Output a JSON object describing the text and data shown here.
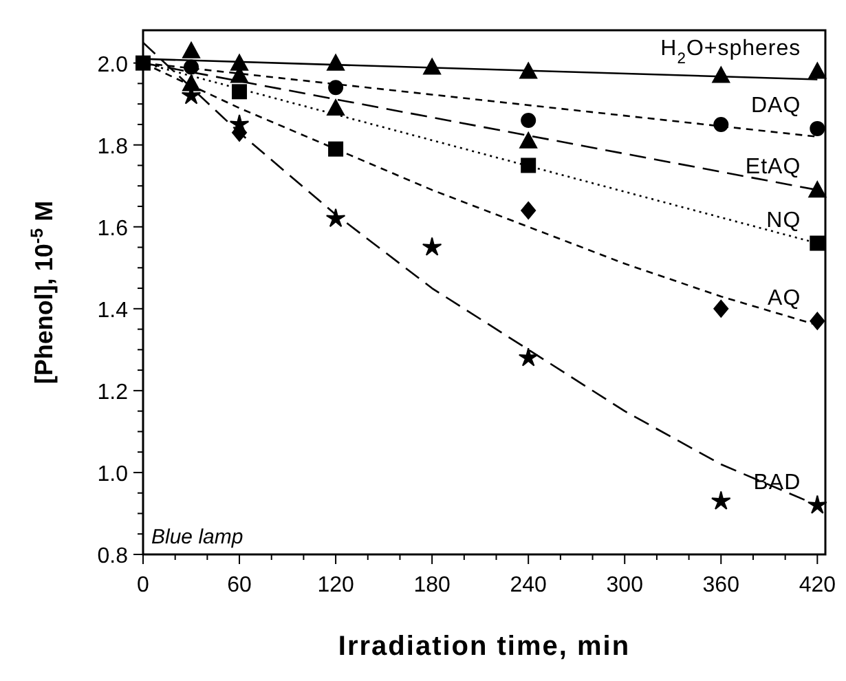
{
  "chart_data": {
    "type": "scatter",
    "xlabel": "Irradiation time, min",
    "ylabel": "[Phenol], 10$^{-5}$ M",
    "xlim": [
      0,
      425
    ],
    "ylim": [
      0.8,
      2.08
    ],
    "xticks": [
      0,
      {
        "value": 20,
        "label": null
      },
      {
        "value": 40,
        "label": null
      },
      60,
      {
        "value": 80,
        "label": null
      },
      {
        "value": 100,
        "label": null
      },
      120,
      {
        "value": 140,
        "label": null
      },
      {
        "value": 160,
        "label": null
      },
      180,
      {
        "value": 200,
        "label": null
      },
      {
        "value": 220,
        "label": null
      },
      240,
      {
        "value": 260,
        "label": null
      },
      {
        "value": 280,
        "label": null
      },
      300,
      {
        "value": 320,
        "label": null
      },
      {
        "value": 340,
        "label": null
      },
      360,
      {
        "value": 380,
        "label": null
      },
      {
        "value": 400,
        "label": null
      },
      420
    ],
    "yticks": [
      {
        "value": 0.8,
        "label": "0.8"
      },
      {
        "value": 0.85,
        "label": null
      },
      {
        "value": 0.9,
        "label": null
      },
      {
        "value": 0.95,
        "label": null
      },
      {
        "value": 1.0,
        "label": "1.0"
      },
      {
        "value": 1.05,
        "label": null
      },
      {
        "value": 1.1,
        "label": null
      },
      {
        "value": 1.15,
        "label": null
      },
      {
        "value": 1.2,
        "label": "1.2"
      },
      {
        "value": 1.25,
        "label": null
      },
      {
        "value": 1.3,
        "label": null
      },
      {
        "value": 1.35,
        "label": null
      },
      {
        "value": 1.4,
        "label": "1.4"
      },
      {
        "value": 1.45,
        "label": null
      },
      {
        "value": 1.5,
        "label": null
      },
      {
        "value": 1.55,
        "label": null
      },
      {
        "value": 1.6,
        "label": "1.6"
      },
      {
        "value": 1.65,
        "label": null
      },
      {
        "value": 1.7,
        "label": null
      },
      {
        "value": 1.75,
        "label": null
      },
      {
        "value": 1.8,
        "label": "1.8"
      },
      {
        "value": 1.85,
        "label": null
      },
      {
        "value": 1.9,
        "label": null
      },
      {
        "value": 1.95,
        "label": null
      },
      {
        "value": 2.0,
        "label": "2.0"
      }
    ],
    "grid": false,
    "legend": false,
    "annotations": [
      "Blue lamp"
    ],
    "series": [
      {
        "type": "line",
        "color": "#000000",
        "line_style": "solid",
        "x": [
          0,
          420
        ],
        "values": [
          2.01,
          1.96
        ]
      },
      {
        "type": "line",
        "color": "#000000",
        "line_style": "dashed",
        "x": [
          0,
          420
        ],
        "values": [
          2.0,
          1.82
        ]
      },
      {
        "type": "line",
        "color": "#000000",
        "line_style": "longdash",
        "x": [
          0,
          420
        ],
        "values": [
          2.0,
          1.69
        ]
      },
      {
        "type": "line",
        "color": "#000000",
        "line_style": "dotted",
        "x": [
          0,
          420
        ],
        "values": [
          2.0,
          1.56
        ]
      },
      {
        "type": "line",
        "color": "#000000",
        "line_style": "dashed",
        "x": [
          0,
          60,
          120,
          180,
          240,
          300,
          360,
          420
        ],
        "values": [
          2.0,
          1.89,
          1.79,
          1.69,
          1.6,
          1.51,
          1.43,
          1.36
        ]
      },
      {
        "type": "line",
        "color": "#000000",
        "line_style": "longdash",
        "x": [
          0,
          60,
          120,
          180,
          240,
          300,
          360,
          420
        ],
        "values": [
          2.05,
          1.83,
          1.63,
          1.45,
          1.3,
          1.15,
          1.02,
          0.92
        ]
      },
      {
        "name": "H$_{2}$O+spheres",
        "color": "#000000",
        "marker": "triangle",
        "x": [
          30,
          60,
          120,
          180,
          240,
          360,
          420
        ],
        "values": [
          2.03,
          2.0,
          2.0,
          1.99,
          1.98,
          1.97,
          1.98
        ]
      },
      {
        "name": "DAQ",
        "color": "#000000",
        "marker": "circle",
        "x": [
          30,
          120,
          240,
          360,
          420
        ],
        "values": [
          1.99,
          1.94,
          1.86,
          1.85,
          1.84
        ]
      },
      {
        "name": "EtAQ",
        "color": "#000000",
        "marker": "triangle",
        "x": [
          30,
          60,
          120,
          240,
          420
        ],
        "values": [
          1.95,
          1.97,
          1.89,
          1.81,
          1.69
        ]
      },
      {
        "name": "NQ",
        "color": "#000000",
        "marker": "square",
        "x": [
          0,
          60,
          120,
          240,
          420
        ],
        "values": [
          2.0,
          1.93,
          1.79,
          1.75,
          1.56
        ]
      },
      {
        "name": "AQ",
        "color": "#000000",
        "marker": "diamond",
        "x": [
          60,
          240,
          360,
          420
        ],
        "values": [
          1.83,
          1.64,
          1.4,
          1.37
        ]
      },
      {
        "name": "BAD",
        "color": "#000000",
        "marker": "star",
        "x": [
          30,
          60,
          120,
          180,
          240,
          360,
          420
        ],
        "values": [
          1.92,
          1.85,
          1.62,
          1.55,
          1.28,
          0.93,
          0.92
        ]
      }
    ]
  }
}
